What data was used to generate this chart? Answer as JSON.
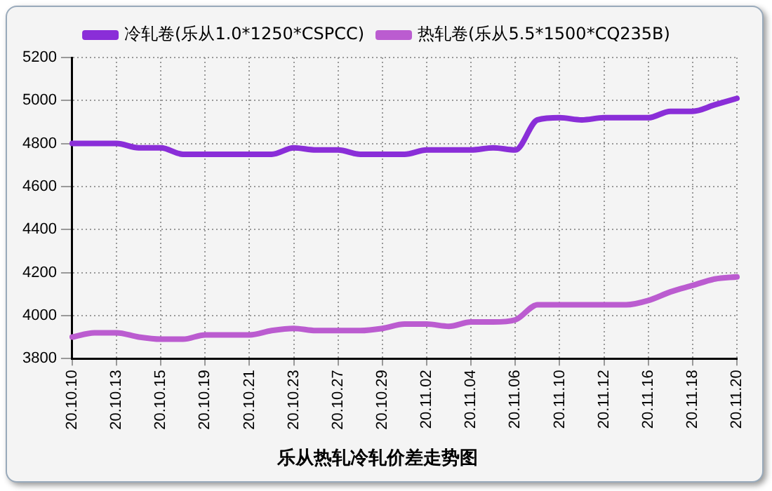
{
  "chart_data": {
    "type": "line",
    "title": "乐从热轧冷轧价差走势图",
    "categories": [
      "20.10.10",
      null,
      "20.10.13",
      null,
      "20.10.15",
      null,
      "20.10.19",
      null,
      "20.10.21",
      null,
      "20.10.23",
      null,
      "20.10.27",
      null,
      "20.10.29",
      null,
      "20.11.02",
      null,
      "20.11.04",
      null,
      "20.11.06",
      null,
      "20.11.10",
      null,
      "20.11.12",
      null,
      "20.11.16",
      null,
      "20.11.18",
      null,
      "20.11.20"
    ],
    "series": [
      {
        "name": "冷轧卷(乐从1.0*1250*CSPCC)",
        "color": "#8a2ed8",
        "values": [
          4800,
          4800,
          4800,
          4780,
          4780,
          4750,
          4750,
          4750,
          4750,
          4750,
          4780,
          4770,
          4770,
          4750,
          4750,
          4750,
          4770,
          4770,
          4770,
          4780,
          4770,
          4910,
          4920,
          4910,
          4920,
          4920,
          4920,
          4950,
          4950,
          4980,
          5010
        ]
      },
      {
        "name": "热轧卷(乐从5.5*1500*CQ235B)",
        "color": "#bb5cd0",
        "values": [
          3900,
          3920,
          3920,
          3900,
          3890,
          3890,
          3910,
          3910,
          3910,
          3930,
          3940,
          3930,
          3930,
          3930,
          3940,
          3960,
          3960,
          3950,
          3970,
          3970,
          3980,
          4050,
          4050,
          4050,
          4050,
          4050,
          4070,
          4110,
          4140,
          4170,
          4180
        ]
      }
    ],
    "ylim": [
      3800,
      5200
    ],
    "yticks": [
      3800,
      4000,
      4200,
      4400,
      4600,
      4800,
      5000,
      5200
    ],
    "grid": true,
    "legend": "top",
    "marker": "none",
    "line_style": "solid"
  }
}
